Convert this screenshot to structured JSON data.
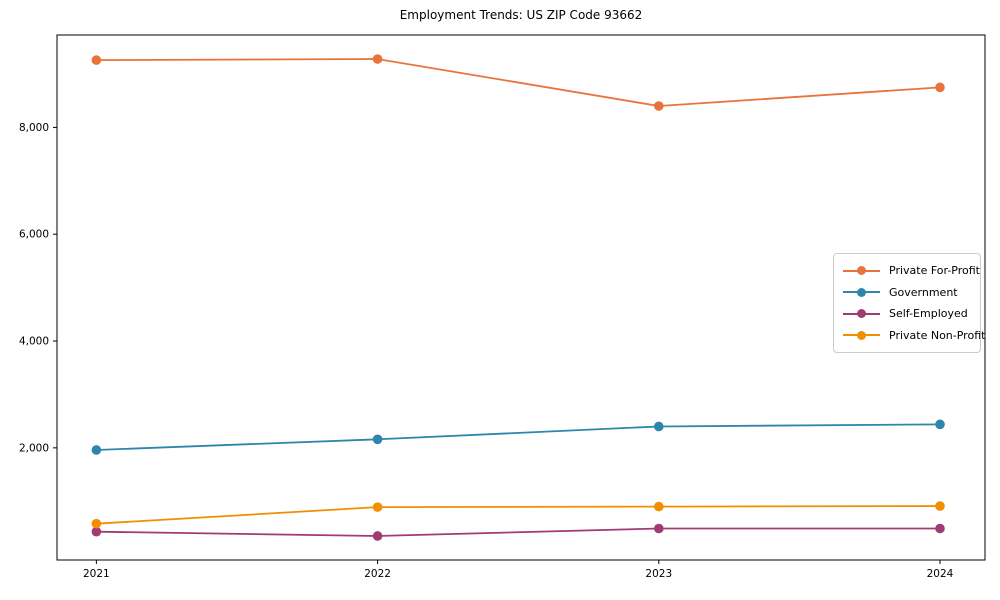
{
  "chart_data": {
    "type": "line",
    "title": "Employment Trends: US ZIP Code 93662",
    "xlabel": "",
    "ylabel": "",
    "x": [
      2021,
      2022,
      2023,
      2024
    ],
    "series": [
      {
        "name": "Private For-Profit",
        "color": "#E8743B",
        "values": [
          9260,
          9280,
          8400,
          8750
        ]
      },
      {
        "name": "Government",
        "color": "#2E86AB",
        "values": [
          1960,
          2160,
          2400,
          2440
        ]
      },
      {
        "name": "Self-Employed",
        "color": "#A23B72",
        "values": [
          430,
          350,
          490,
          490
        ]
      },
      {
        "name": "Private Non-Profit",
        "color": "#F18F01",
        "values": [
          580,
          890,
          900,
          910
        ]
      }
    ],
    "xlim": [
      2020.86,
      2024.16
    ],
    "ylim": [
      -100,
      9730
    ],
    "yticks": [
      {
        "value": 2000,
        "label": "2,000"
      },
      {
        "value": 4000,
        "label": "4,000"
      },
      {
        "value": 6000,
        "label": "6,000"
      },
      {
        "value": 8000,
        "label": "8,000"
      }
    ],
    "xticks": [
      {
        "value": 2021,
        "label": "2021"
      },
      {
        "value": 2022,
        "label": "2022"
      },
      {
        "value": 2023,
        "label": "2023"
      },
      {
        "value": 2024,
        "label": "2024"
      }
    ],
    "grid": false,
    "legend_position": "center right",
    "axis_color": "#000000",
    "background_color": "#ffffff"
  }
}
